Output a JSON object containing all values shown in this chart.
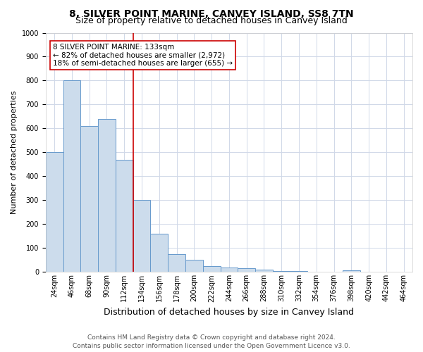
{
  "title": "8, SILVER POINT MARINE, CANVEY ISLAND, SS8 7TN",
  "subtitle": "Size of property relative to detached houses in Canvey Island",
  "xlabel": "Distribution of detached houses by size in Canvey Island",
  "ylabel": "Number of detached properties",
  "bar_labels": [
    "24sqm",
    "46sqm",
    "68sqm",
    "90sqm",
    "112sqm",
    "134sqm",
    "156sqm",
    "178sqm",
    "200sqm",
    "222sqm",
    "244sqm",
    "266sqm",
    "288sqm",
    "310sqm",
    "332sqm",
    "354sqm",
    "376sqm",
    "398sqm",
    "420sqm",
    "442sqm",
    "464sqm"
  ],
  "bar_values": [
    500,
    800,
    610,
    640,
    470,
    300,
    160,
    75,
    50,
    25,
    20,
    15,
    10,
    5,
    3,
    2,
    1,
    8,
    0,
    0,
    0
  ],
  "bar_color": "#ccdcec",
  "bar_edge_color": "#6699cc",
  "property_line_index": 5,
  "property_line_color": "#cc0000",
  "annotation_title": "8 SILVER POINT MARINE: 133sqm",
  "annotation_line1": "← 82% of detached houses are smaller (2,972)",
  "annotation_line2": "18% of semi-detached houses are larger (655) →",
  "annotation_box_facecolor": "#ffffff",
  "annotation_box_edgecolor": "#cc0000",
  "ylim": [
    0,
    1000
  ],
  "yticks": [
    0,
    100,
    200,
    300,
    400,
    500,
    600,
    700,
    800,
    900,
    1000
  ],
  "footer1": "Contains HM Land Registry data © Crown copyright and database right 2024.",
  "footer2": "Contains public sector information licensed under the Open Government Licence v3.0.",
  "background_color": "#ffffff",
  "grid_color": "#d0d8e8",
  "title_fontsize": 10,
  "subtitle_fontsize": 9,
  "xlabel_fontsize": 9,
  "ylabel_fontsize": 8,
  "tick_fontsize": 7,
  "annotation_fontsize": 7.5,
  "footer_fontsize": 6.5
}
